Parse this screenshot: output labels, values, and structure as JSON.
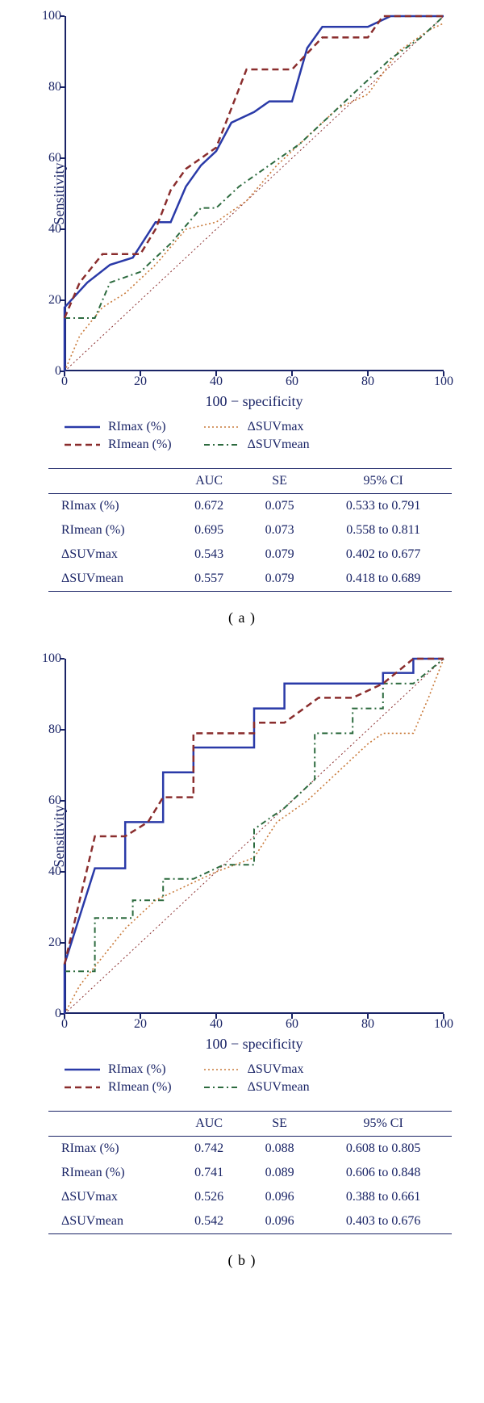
{
  "axis": {
    "x_label": "100 − specificity",
    "y_label": "Sensitivity",
    "ticks": [
      0,
      20,
      40,
      60,
      80,
      100
    ],
    "xlim": [
      0,
      100
    ],
    "ylim": [
      0,
      100
    ]
  },
  "series_style": {
    "RImax": {
      "color": "#2a3aa8",
      "width": 2.5,
      "dash": ""
    },
    "RImean": {
      "color": "#8a2d2d",
      "width": 2.5,
      "dash": "8 5"
    },
    "dSUVmax": {
      "color": "#c97a3a",
      "width": 1.6,
      "dash": "2 3"
    },
    "dSUVmean": {
      "color": "#2d6b3f",
      "width": 2,
      "dash": "7 4 2 4"
    },
    "diag": {
      "color": "#8a2d2d",
      "width": 1,
      "dash": "2 3"
    }
  },
  "legend": {
    "left": [
      {
        "key": "RImax",
        "label": "RImax (%)"
      },
      {
        "key": "RImean",
        "label": "RImean (%)"
      }
    ],
    "right": [
      {
        "key": "dSUVmax",
        "label": "ΔSUVmax"
      },
      {
        "key": "dSUVmean",
        "label": "ΔSUVmean"
      }
    ]
  },
  "table_columns": [
    "",
    "AUC",
    "SE",
    "95% CI"
  ],
  "panels": [
    {
      "label": "( a )",
      "series": {
        "RImax": [
          [
            0,
            0
          ],
          [
            0,
            18
          ],
          [
            6,
            25
          ],
          [
            12,
            30
          ],
          [
            18,
            32
          ],
          [
            24,
            42
          ],
          [
            28,
            42
          ],
          [
            32,
            52
          ],
          [
            36,
            58
          ],
          [
            40,
            62
          ],
          [
            44,
            70
          ],
          [
            50,
            73
          ],
          [
            54,
            76
          ],
          [
            60,
            76
          ],
          [
            64,
            91
          ],
          [
            68,
            97
          ],
          [
            80,
            97
          ],
          [
            86,
            100
          ],
          [
            100,
            100
          ]
        ],
        "RImean": [
          [
            0,
            15
          ],
          [
            4,
            25
          ],
          [
            10,
            33
          ],
          [
            20,
            33
          ],
          [
            24,
            40
          ],
          [
            28,
            51
          ],
          [
            32,
            57
          ],
          [
            36,
            60
          ],
          [
            40,
            63
          ],
          [
            48,
            85
          ],
          [
            60,
            85
          ],
          [
            68,
            94
          ],
          [
            80,
            94
          ],
          [
            84,
            100
          ],
          [
            100,
            100
          ]
        ],
        "dSUVmax": [
          [
            0,
            0
          ],
          [
            4,
            10
          ],
          [
            10,
            18
          ],
          [
            16,
            22
          ],
          [
            24,
            30
          ],
          [
            32,
            40
          ],
          [
            40,
            42
          ],
          [
            48,
            48
          ],
          [
            56,
            58
          ],
          [
            64,
            66
          ],
          [
            72,
            74
          ],
          [
            80,
            78
          ],
          [
            88,
            90
          ],
          [
            96,
            96
          ],
          [
            100,
            98
          ]
        ],
        "dSUVmean": [
          [
            0,
            15
          ],
          [
            8,
            15
          ],
          [
            12,
            25
          ],
          [
            20,
            28
          ],
          [
            28,
            36
          ],
          [
            36,
            46
          ],
          [
            40,
            46
          ],
          [
            46,
            52
          ],
          [
            54,
            58
          ],
          [
            62,
            64
          ],
          [
            70,
            72
          ],
          [
            78,
            80
          ],
          [
            86,
            88
          ],
          [
            94,
            94
          ],
          [
            100,
            100
          ]
        ]
      },
      "table": [
        [
          "RImax (%)",
          "0.672",
          "0.075",
          "0.533 to 0.791"
        ],
        [
          "RImean (%)",
          "0.695",
          "0.073",
          "0.558 to 0.811"
        ],
        [
          "ΔSUVmax",
          "0.543",
          "0.079",
          "0.402 to 0.677"
        ],
        [
          "ΔSUVmean",
          "0.557",
          "0.079",
          "0.418 to 0.689"
        ]
      ]
    },
    {
      "label": "( b )",
      "series": {
        "RImax": [
          [
            0,
            0
          ],
          [
            0,
            14
          ],
          [
            8,
            41
          ],
          [
            16,
            41
          ],
          [
            16,
            54
          ],
          [
            26,
            54
          ],
          [
            26,
            68
          ],
          [
            34,
            68
          ],
          [
            34,
            75
          ],
          [
            50,
            75
          ],
          [
            50,
            86
          ],
          [
            58,
            86
          ],
          [
            58,
            93
          ],
          [
            84,
            93
          ],
          [
            84,
            96
          ],
          [
            92,
            96
          ],
          [
            92,
            100
          ],
          [
            100,
            100
          ]
        ],
        "RImean": [
          [
            0,
            14
          ],
          [
            8,
            50
          ],
          [
            16,
            50
          ],
          [
            22,
            54
          ],
          [
            26,
            61
          ],
          [
            34,
            61
          ],
          [
            34,
            79
          ],
          [
            50,
            79
          ],
          [
            50,
            82
          ],
          [
            58,
            82
          ],
          [
            67,
            89
          ],
          [
            76,
            89
          ],
          [
            84,
            93
          ],
          [
            92,
            100
          ],
          [
            100,
            100
          ]
        ],
        "dSUVmax": [
          [
            0,
            0
          ],
          [
            4,
            8
          ],
          [
            10,
            16
          ],
          [
            16,
            24
          ],
          [
            24,
            32
          ],
          [
            32,
            36
          ],
          [
            40,
            40
          ],
          [
            50,
            44
          ],
          [
            56,
            54
          ],
          [
            64,
            60
          ],
          [
            72,
            68
          ],
          [
            80,
            76
          ],
          [
            84,
            79
          ],
          [
            92,
            79
          ],
          [
            96,
            89
          ],
          [
            100,
            100
          ]
        ],
        "dSUVmean": [
          [
            0,
            12
          ],
          [
            8,
            12
          ],
          [
            8,
            27
          ],
          [
            18,
            27
          ],
          [
            18,
            32
          ],
          [
            26,
            32
          ],
          [
            26,
            38
          ],
          [
            34,
            38
          ],
          [
            42,
            42
          ],
          [
            50,
            42
          ],
          [
            50,
            52
          ],
          [
            58,
            58
          ],
          [
            66,
            66
          ],
          [
            66,
            79
          ],
          [
            76,
            79
          ],
          [
            76,
            86
          ],
          [
            84,
            86
          ],
          [
            84,
            93
          ],
          [
            92,
            93
          ],
          [
            100,
            100
          ]
        ]
      },
      "table": [
        [
          "RImax (%)",
          "0.742",
          "0.088",
          "0.608 to 0.805"
        ],
        [
          "RImean (%)",
          "0.741",
          "0.089",
          "0.606 to 0.848"
        ],
        [
          "ΔSUVmax",
          "0.526",
          "0.096",
          "0.388 to 0.661"
        ],
        [
          "ΔSUVmean",
          "0.542",
          "0.096",
          "0.403 to 0.676"
        ]
      ]
    }
  ]
}
